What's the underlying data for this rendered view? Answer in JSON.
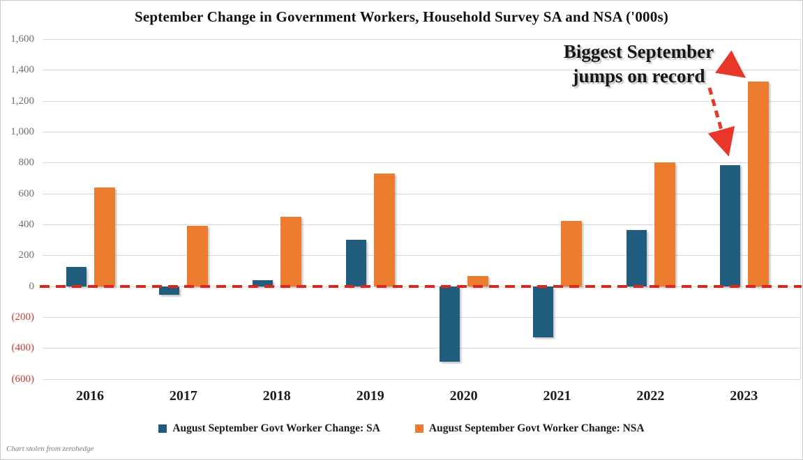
{
  "title": "September Change in Government Workers, Household Survey SA and NSA ('000s)",
  "annotation": {
    "line1": "Biggest September",
    "line2": "jumps on record"
  },
  "credit": "Chart stolen from zerohedge",
  "colors": {
    "sa_blue": "#1F5C7D",
    "nsa_orange": "#EC7C30",
    "zero_line_red": "#E0261C",
    "arrow_red": "#E8362B",
    "negative_label_red": "#C83C32",
    "gridline_gray": "#D9D9D9",
    "axis_label_gray": "#6E6E6E"
  },
  "chart_data": {
    "type": "bar",
    "categories": [
      "2016",
      "2017",
      "2018",
      "2019",
      "2020",
      "2021",
      "2022",
      "2023"
    ],
    "series": [
      {
        "name": "August September Govt Worker Change: SA",
        "color": "#1F5C7D",
        "values": [
          125,
          -55,
          40,
          300,
          -490,
          -330,
          365,
          785
        ]
      },
      {
        "name": "August September Govt Worker Change: NSA",
        "color": "#EC7C30",
        "values": [
          640,
          390,
          450,
          730,
          65,
          420,
          800,
          1325
        ]
      }
    ],
    "xlabel": "",
    "ylabel": "",
    "ylim": [
      -600,
      1600
    ],
    "ytick_step": 200,
    "y_tick_labels": [
      "1,600",
      "1,400",
      "1,200",
      "1,000",
      "800",
      "600",
      "400",
      "200",
      "0",
      "(200)",
      "(400)",
      "(600)"
    ],
    "grid": true,
    "legend_position": "bottom",
    "zero_line": {
      "style": "dashed",
      "color": "#E0261C"
    }
  }
}
